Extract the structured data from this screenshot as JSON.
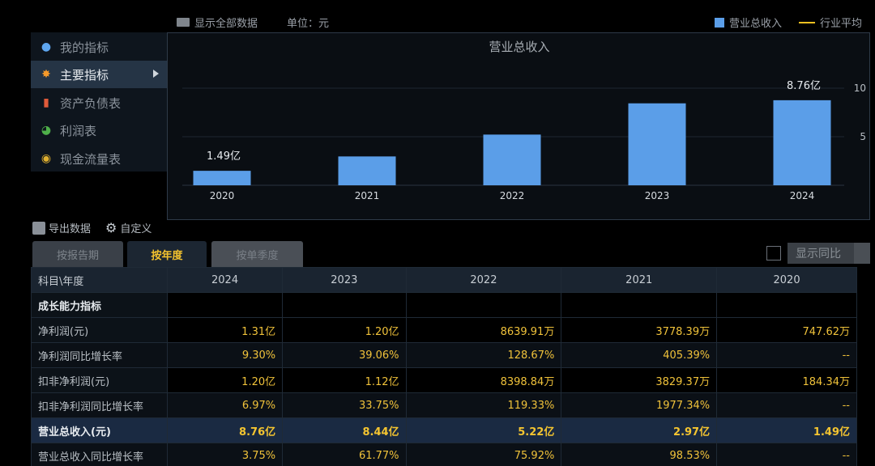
{
  "topbar": {
    "show_all": "显示全部数据",
    "unit": "单位：元",
    "legend_revenue": "营业总收入",
    "legend_avg": "行业平均"
  },
  "nav": {
    "items": [
      {
        "label": "我的指标",
        "icon": "person-icon"
      },
      {
        "label": "主要指标",
        "icon": "star-icon"
      },
      {
        "label": "资产负债表",
        "icon": "sheet-icon"
      },
      {
        "label": "利润表",
        "icon": "pie-icon"
      },
      {
        "label": "现金流量表",
        "icon": "coins-icon"
      }
    ],
    "active_index": 1
  },
  "chart_data": {
    "type": "bar",
    "title": "营业总收入",
    "categories": [
      "2020",
      "2021",
      "2022",
      "2023",
      "2024"
    ],
    "values": [
      1.49,
      2.97,
      5.22,
      8.44,
      8.76
    ],
    "data_labels": {
      "2020": "1.49亿",
      "2024": "8.76亿"
    },
    "y_ticks": [
      5,
      10
    ],
    "ylim": [
      0,
      11.5
    ],
    "grid": true,
    "legend_position": "top-right",
    "colors": {
      "bar": "#5b9ee8",
      "avg": "#f0c020"
    }
  },
  "toolbar": {
    "export": "导出数据",
    "custom": "自定义"
  },
  "tabs": [
    {
      "label": "按报告期"
    },
    {
      "label": "按年度"
    },
    {
      "label": "按单季度"
    }
  ],
  "yoy_label": "显示同比",
  "table": {
    "header_first": "科目\\年度",
    "years": [
      "2024",
      "2023",
      "2022",
      "2021",
      "2020"
    ],
    "rows": [
      {
        "label": "成长能力指标",
        "section": true,
        "values": [
          "",
          "",
          "",
          "",
          ""
        ]
      },
      {
        "label": "净利润(元)",
        "values": [
          "1.31亿",
          "1.20亿",
          "8639.91万",
          "3778.39万",
          "747.62万"
        ]
      },
      {
        "label": "净利润同比增长率",
        "values": [
          "9.30%",
          "39.06%",
          "128.67%",
          "405.39%",
          "--"
        ]
      },
      {
        "label": "扣非净利润(元)",
        "values": [
          "1.20亿",
          "1.12亿",
          "8398.84万",
          "3829.37万",
          "184.34万"
        ]
      },
      {
        "label": "扣非净利润同比增长率",
        "values": [
          "6.97%",
          "33.75%",
          "119.33%",
          "1977.34%",
          "--"
        ]
      },
      {
        "label": "营业总收入(元)",
        "highlight": true,
        "values": [
          "8.76亿",
          "8.44亿",
          "5.22亿",
          "2.97亿",
          "1.49亿"
        ]
      },
      {
        "label": "营业总收入同比增长率",
        "values": [
          "3.75%",
          "61.77%",
          "75.92%",
          "98.53%",
          "--"
        ]
      }
    ]
  }
}
